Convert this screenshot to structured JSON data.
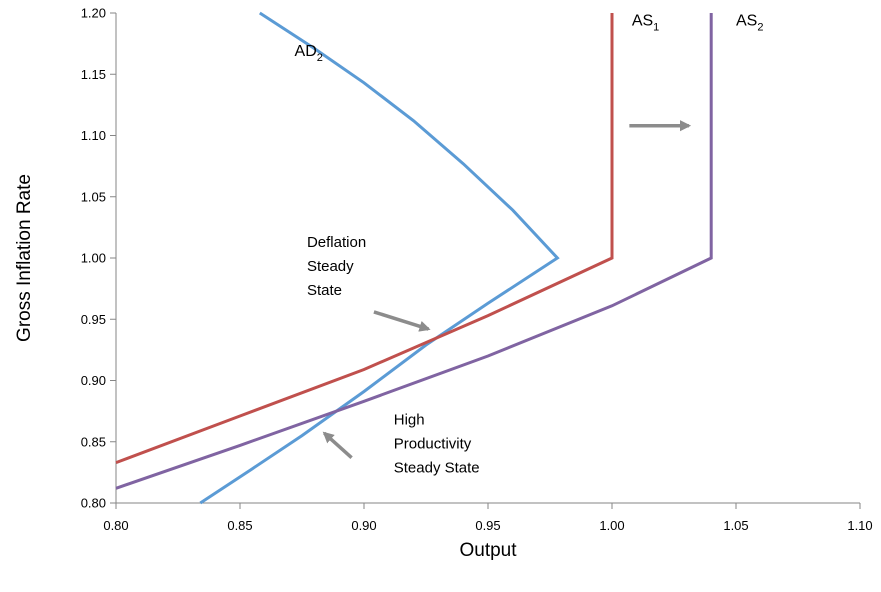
{
  "chart_data": {
    "type": "line",
    "xlabel": "Output",
    "ylabel": "Gross Inflation Rate",
    "xlim": [
      0.8,
      1.1
    ],
    "ylim": [
      0.8,
      1.2
    ],
    "x_ticks": [
      "0.80",
      "0.85",
      "0.90",
      "0.95",
      "1.00",
      "1.05",
      "1.10"
    ],
    "y_ticks": [
      "0.80",
      "0.85",
      "0.90",
      "0.95",
      "1.00",
      "1.05",
      "1.10",
      "1.15",
      "1.20"
    ],
    "grid": false,
    "series": [
      {
        "label_base": "AD",
        "label_sub": "2",
        "color": "#5b9bd5",
        "label_at": [
          0.872,
          1.165
        ],
        "points": [
          [
            0.858,
            1.2
          ],
          [
            0.88,
            1.171
          ],
          [
            0.9,
            1.143
          ],
          [
            0.92,
            1.112
          ],
          [
            0.94,
            1.077
          ],
          [
            0.96,
            1.039
          ],
          [
            0.978,
            1.0
          ],
          [
            0.95,
            0.963
          ],
          [
            0.925,
            0.929
          ],
          [
            0.9,
            0.891
          ],
          [
            0.875,
            0.855
          ],
          [
            0.855,
            0.828
          ],
          [
            0.834,
            0.8
          ]
        ]
      },
      {
        "label_base": "AS",
        "label_sub": "1",
        "color": "#c0504d",
        "label_at": [
          1.008,
          1.19
        ],
        "points": [
          [
            0.8,
            0.833
          ],
          [
            0.85,
            0.871
          ],
          [
            0.9,
            0.909
          ],
          [
            0.95,
            0.953
          ],
          [
            1.0,
            1.0
          ],
          [
            1.0,
            1.2
          ]
        ]
      },
      {
        "label_base": "AS",
        "label_sub": "2",
        "color": "#8064a2",
        "label_at": [
          1.05,
          1.19
        ],
        "points": [
          [
            0.8,
            0.812
          ],
          [
            0.85,
            0.847
          ],
          [
            0.9,
            0.883
          ],
          [
            0.95,
            0.92
          ],
          [
            1.0,
            0.961
          ],
          [
            1.04,
            1.0
          ],
          [
            1.04,
            1.2
          ]
        ]
      }
    ],
    "annotations": [
      {
        "lines": [
          "Deflation",
          "Steady",
          "State"
        ],
        "text_at": [
          0.877,
          1.009
        ],
        "arrow_from": [
          0.904,
          0.956
        ],
        "arrow_to": [
          0.926,
          0.942
        ]
      },
      {
        "lines": [
          "High",
          "Productivity",
          "Steady State"
        ],
        "text_at": [
          0.912,
          0.864
        ],
        "arrow_from": [
          0.895,
          0.837
        ],
        "arrow_to": [
          0.884,
          0.857
        ]
      }
    ],
    "shift_arrow": {
      "from": [
        1.007,
        1.108
      ],
      "to": [
        1.031,
        1.108
      ],
      "color": "#8c8c8c"
    }
  }
}
